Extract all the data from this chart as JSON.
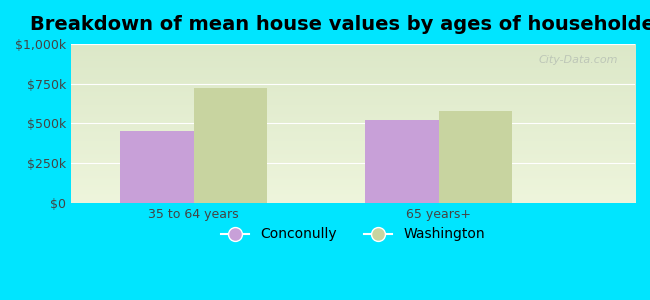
{
  "title": "Breakdown of mean house values by ages of householders",
  "categories": [
    "35 to 64 years",
    "65 years+"
  ],
  "series": [
    {
      "name": "Conconully",
      "values": [
        450000,
        520000
      ],
      "color": "#c8a0d8"
    },
    {
      "name": "Washington",
      "values": [
        720000,
        580000
      ],
      "color": "#c8d4a0"
    }
  ],
  "ylim": [
    0,
    1000000
  ],
  "yticks": [
    0,
    250000,
    500000,
    750000,
    1000000
  ],
  "ytick_labels": [
    "$0",
    "$250k",
    "$500k",
    "$750k",
    "$1,000k"
  ],
  "bar_width": 0.3,
  "background_color": "#00e5ff",
  "plot_bg_top": "#dce8c8",
  "plot_bg_bottom": "#eef5dc",
  "title_fontsize": 14,
  "legend_fontsize": 10,
  "tick_fontsize": 9,
  "watermark": "City-Data.com"
}
